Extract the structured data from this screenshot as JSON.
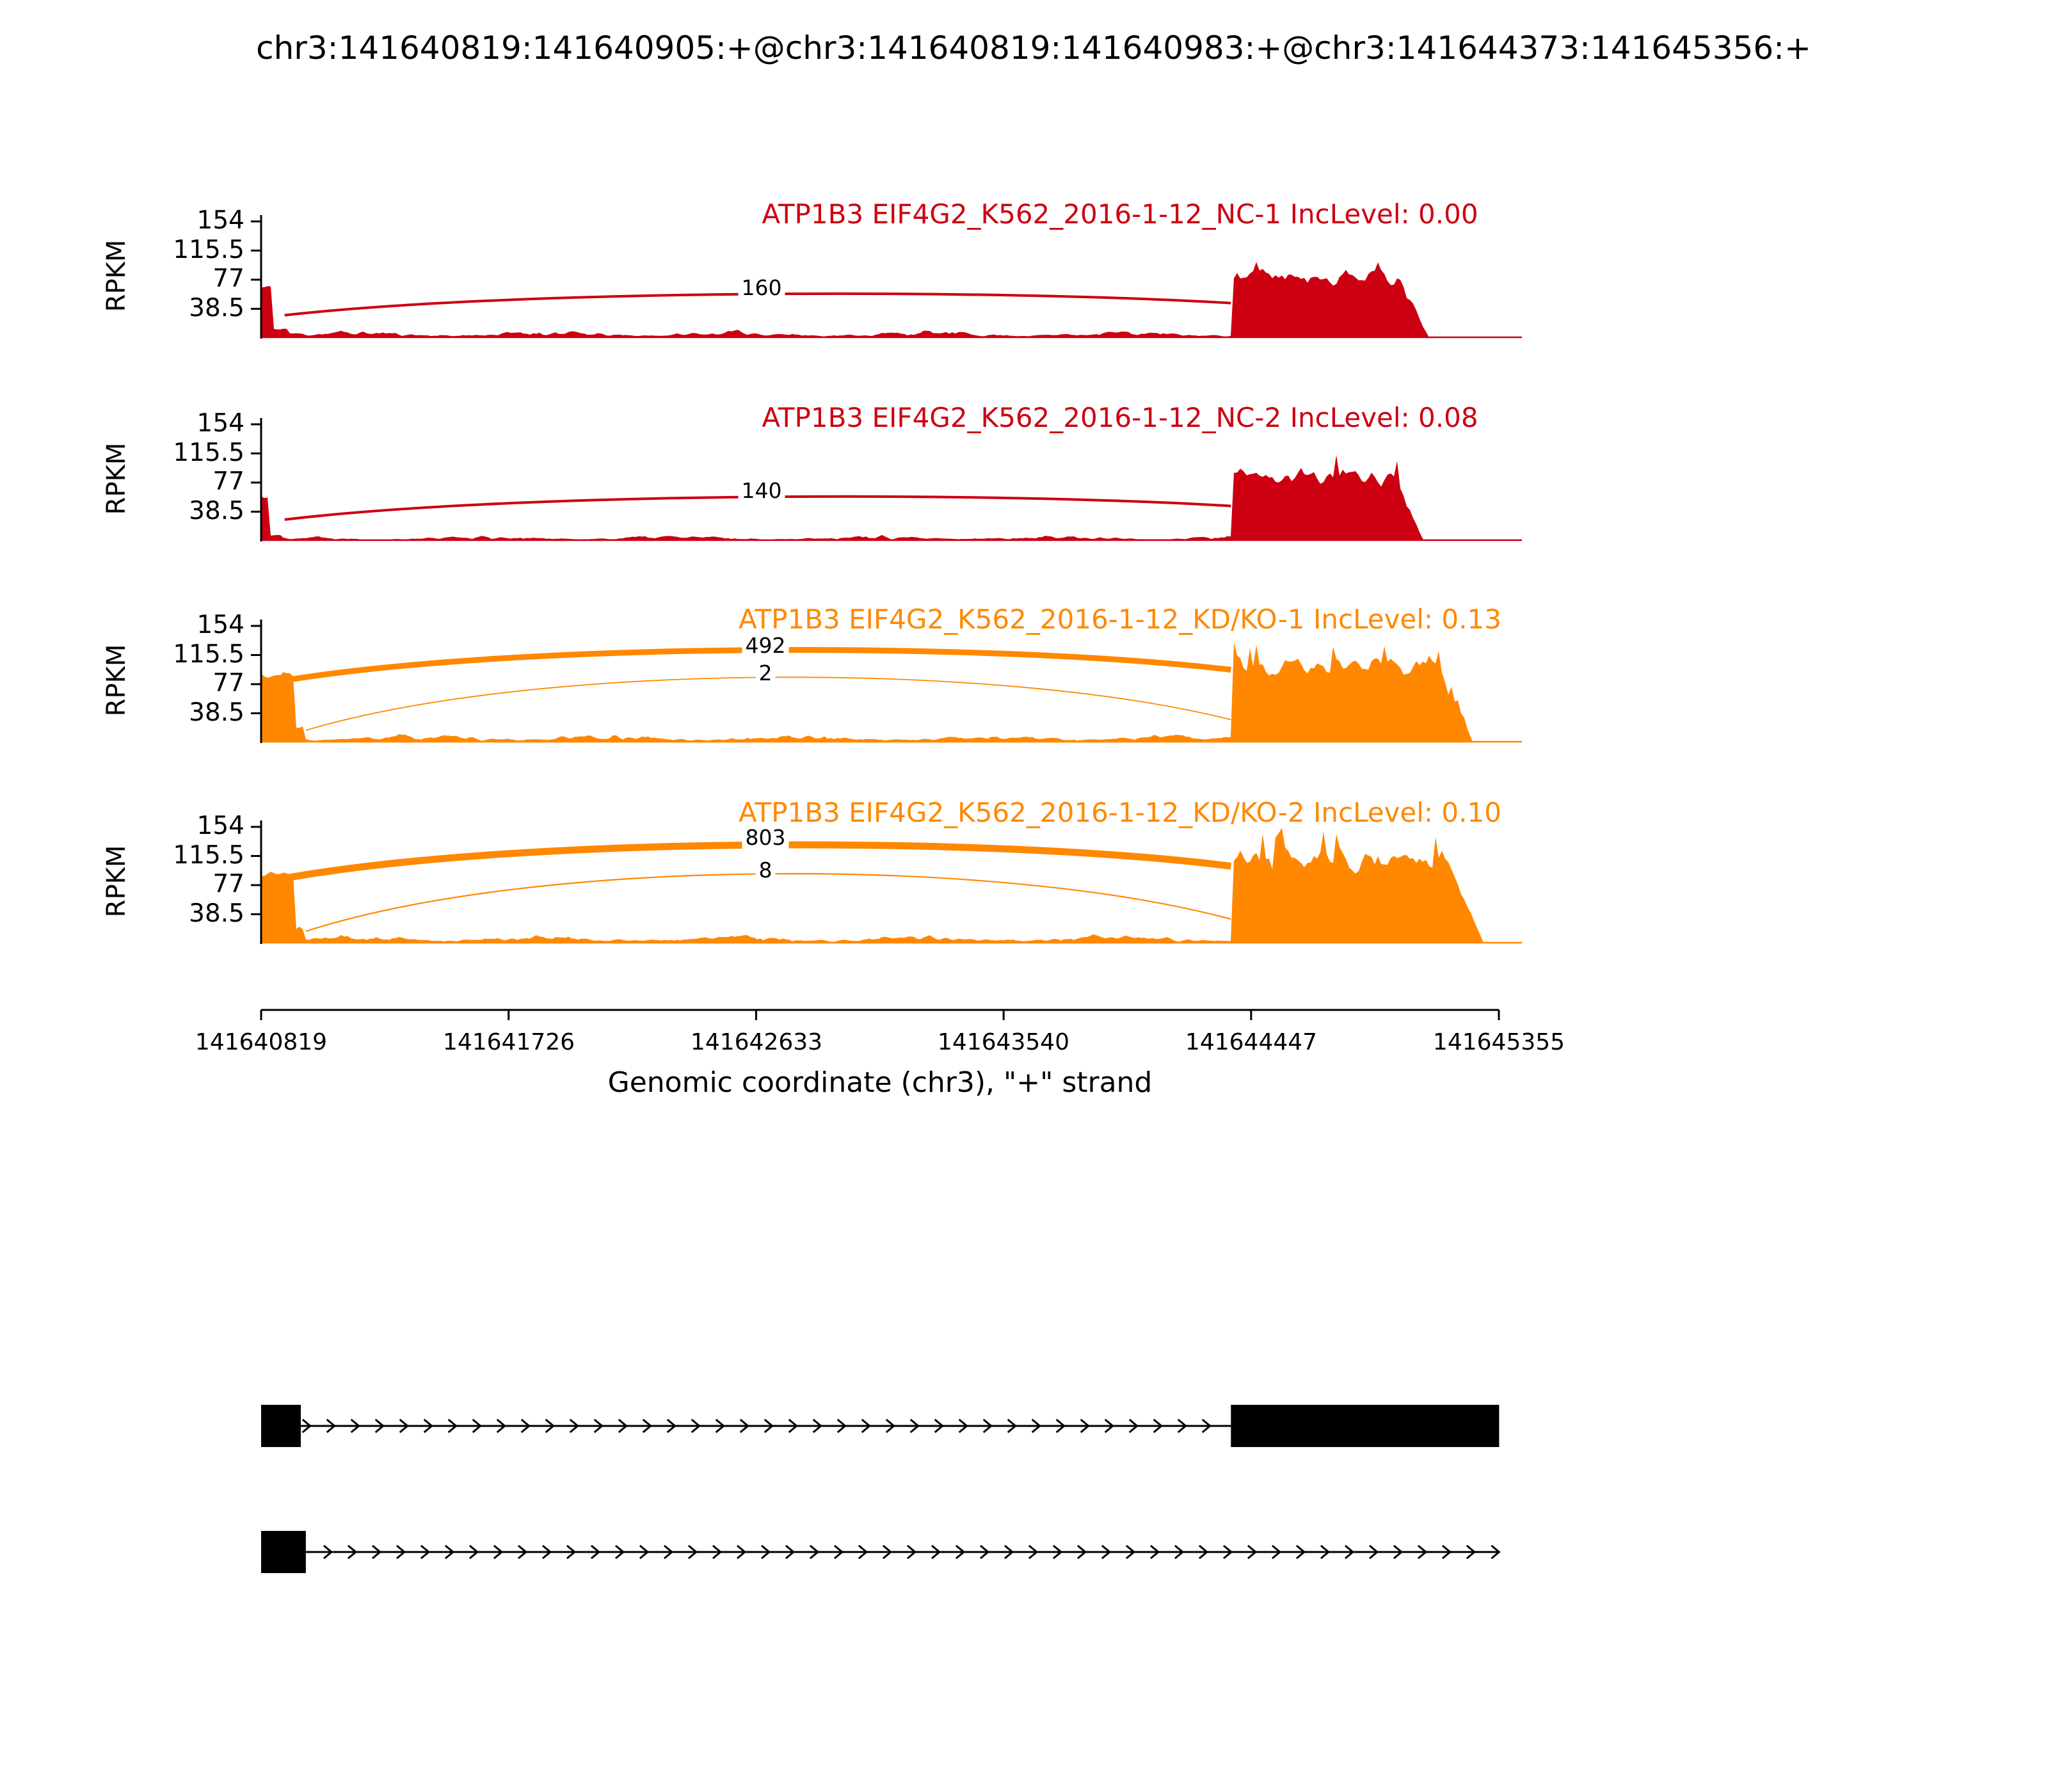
{
  "title": "chr3:141640819:141640905:+@chr3:141640819:141640983:+@chr3:141644373:141645356:+",
  "y_axis": {
    "label": "RPKM",
    "ticks": [
      "154",
      "115.5",
      "77",
      "38.5"
    ]
  },
  "x_axis": {
    "label": "Genomic coordinate (chr3), \"+\" strand",
    "ticks": [
      "141640819",
      "141641726",
      "141642633",
      "141643540",
      "141644447",
      "141645355"
    ]
  },
  "chart_data": {
    "type": "sashimi",
    "x_range": [
      141640819,
      141645355
    ],
    "y_ticks_rpkm": [
      154,
      115.5,
      77,
      38.5
    ],
    "tracks": [
      {
        "label": "ATP1B3 EIF4G2_K562_2016-1-12_NC-1 IncLevel: 0.00",
        "color": "#CC0011",
        "inc_level": "0.00",
        "junctions": [
          {
            "from": 141640905,
            "to": 141644373,
            "count": "160",
            "anchors": [
              30,
              46
            ],
            "apex": 58,
            "width": 4
          }
        ],
        "coverage": {
          "left_end": 141640983,
          "left_peak": 66,
          "left_peak_frac": 0.22,
          "left_shoulder": 12,
          "left_shoulder_frac": 0.6,
          "intron": 6,
          "right_start": 141644373,
          "right": 82,
          "right_spike": 96,
          "right_end": 141645100
        }
      },
      {
        "label": "ATP1B3 EIF4G2_K562_2016-1-12_NC-2 IncLevel: 0.08",
        "color": "#CC0011",
        "inc_level": "0.08",
        "junctions": [
          {
            "from": 141640905,
            "to": 141644373,
            "count": "140",
            "anchors": [
              28,
              46
            ],
            "apex": 58,
            "width": 4
          }
        ],
        "coverage": {
          "left_end": 141640983,
          "left_peak": 60,
          "left_peak_frac": 0.2,
          "left_shoulder": 7,
          "left_shoulder_frac": 0.5,
          "intron": 4.5,
          "right_start": 141644373,
          "right": 84,
          "right_spike": 112,
          "right_end": 141645080
        }
      },
      {
        "label": "ATP1B3 EIF4G2_K562_2016-1-12_KD/KO-1 IncLevel: 0.13",
        "color": "#FF8800",
        "inc_level": "0.13",
        "junctions": [
          {
            "from": 141640905,
            "to": 141644373,
            "count": "492",
            "anchors": [
              82,
              96
            ],
            "apex": 122,
            "width": 9
          },
          {
            "from": 141640983,
            "to": 141644373,
            "count": "2",
            "anchors": [
              16,
              30
            ],
            "apex": 86,
            "width": 1.8
          }
        ],
        "coverage": {
          "left_end": 141640983,
          "left_peak": 88,
          "left_peak_frac": 0.72,
          "left_shoulder": 18,
          "left_shoulder_frac": 0.95,
          "intron": 6.5,
          "right_start": 141644373,
          "right": 103,
          "right_spike": 126,
          "right_end": 141645260
        }
      },
      {
        "label": "ATP1B3 EIF4G2_K562_2016-1-12_KD/KO-2 IncLevel: 0.10",
        "color": "#FF8800",
        "inc_level": "0.10",
        "junctions": [
          {
            "from": 141640905,
            "to": 141644373,
            "count": "803",
            "anchors": [
              86,
              102
            ],
            "apex": 130,
            "width": 11
          },
          {
            "from": 141640983,
            "to": 141644373,
            "count": "8",
            "anchors": [
              16,
              32
            ],
            "apex": 92,
            "width": 2.2
          }
        ],
        "coverage": {
          "left_end": 141640983,
          "left_peak": 92,
          "left_peak_frac": 0.72,
          "left_shoulder": 18,
          "left_shoulder_frac": 0.95,
          "intron": 7,
          "right_start": 141644373,
          "right": 110,
          "right_spike": 142,
          "right_end": 141645300
        }
      }
    ],
    "transcripts": [
      {
        "exons": [
          [
            141640819,
            141640905
          ],
          [
            141644373,
            141645356
          ]
        ],
        "intron": [
          141640905,
          141644373
        ],
        "end_arrow": false
      },
      {
        "exons": [
          [
            141640819,
            141640983
          ]
        ],
        "intron": [
          141640983,
          141645356
        ],
        "end_arrow": true
      }
    ]
  }
}
